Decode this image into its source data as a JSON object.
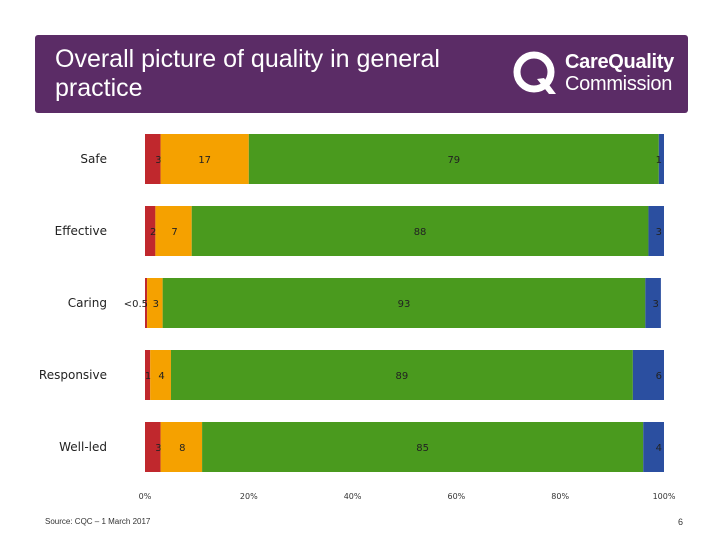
{
  "header": {
    "title": "Overall picture of quality in general practice",
    "logo_line1": "CareQuality",
    "logo_line2": "Commission"
  },
  "footer": {
    "source": "Source: CQC – 1 March 2017",
    "page_number": "6"
  },
  "colors": {
    "banner": "#5b2c66",
    "inadequate": "#c0282d",
    "requires_improvement": "#f5a100",
    "good": "#4a9a1e",
    "outstanding": "#2b4fa0"
  },
  "chart_data": {
    "type": "bar",
    "orientation": "horizontal",
    "stacked": true,
    "categories": [
      "Safe",
      "Effective",
      "Caring",
      "Responsive",
      "Well-led"
    ],
    "series": [
      {
        "key": "inadequate",
        "values": [
          3,
          2,
          0.4,
          1,
          3
        ],
        "labels": [
          "3",
          "2",
          "<0.5",
          "1",
          "3"
        ]
      },
      {
        "key": "requires_improvement",
        "values": [
          17,
          7,
          3,
          4,
          8
        ],
        "labels": [
          "17",
          "7",
          "3",
          "4",
          "8"
        ]
      },
      {
        "key": "good",
        "values": [
          79,
          88,
          93,
          89,
          85
        ],
        "labels": [
          "79",
          "88",
          "93",
          "89",
          "85"
        ]
      },
      {
        "key": "outstanding",
        "values": [
          1,
          3,
          3,
          6,
          4
        ],
        "labels": [
          "1",
          "3",
          "3",
          "6",
          "4"
        ]
      }
    ],
    "xlim": [
      0,
      100
    ],
    "xticks": [
      "0%",
      "20%",
      "40%",
      "60%",
      "80%",
      "100%"
    ],
    "grid": false,
    "legend": "none"
  }
}
